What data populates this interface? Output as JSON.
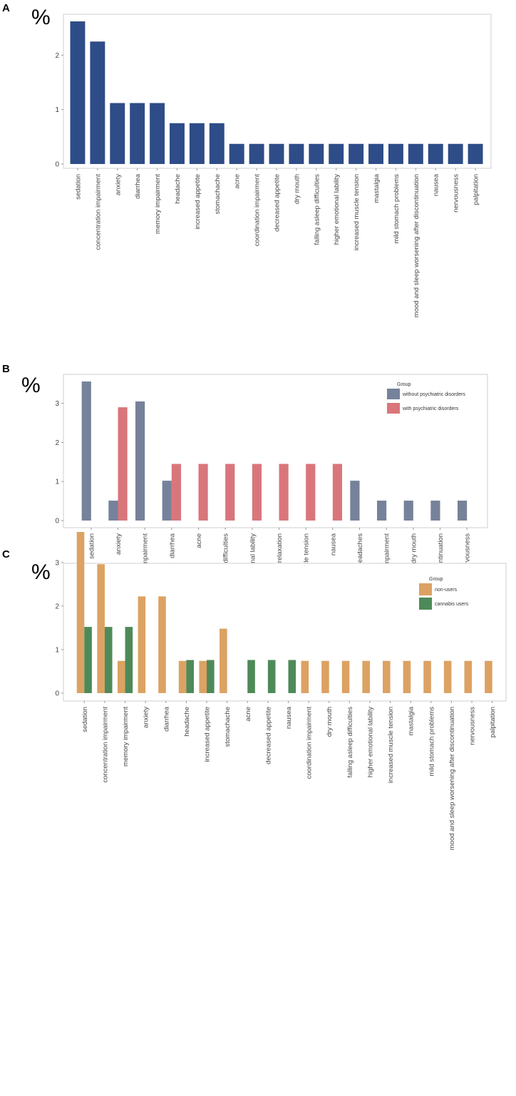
{
  "chart_data": [
    {
      "panel": "A",
      "type": "bar",
      "ylabel": "%",
      "ylim": [
        0,
        2.62
      ],
      "yticks": [
        0,
        1,
        2
      ],
      "grid": false,
      "categories": [
        "sedation",
        "concentration impairment",
        "anxiety",
        "diarrhea",
        "memory impairment",
        "headache",
        "increased appetite",
        "stomachache",
        "acne",
        "coordination impairment",
        "decreased appetite",
        "dry mouth",
        "falling asleep difficulties",
        "higher emotional lability",
        "increased muscle tension",
        "mastalgia",
        "mild stomach problems",
        "mood and sleep worsening after discontinuation",
        "nausea",
        "nervousness",
        "palpitation"
      ],
      "series": [
        {
          "values": [
            2.62,
            2.25,
            1.12,
            1.12,
            1.12,
            0.75,
            0.75,
            0.75,
            0.37,
            0.37,
            0.37,
            0.37,
            0.37,
            0.37,
            0.37,
            0.37,
            0.37,
            0.37,
            0.37,
            0.37,
            0.37
          ],
          "color": "#2e4c87"
        }
      ]
    },
    {
      "panel": "B",
      "type": "bar",
      "ylabel": "%",
      "ylim": [
        0,
        3.56
      ],
      "yticks": [
        0,
        1,
        2,
        3
      ],
      "grid": false,
      "legend": {
        "title": "Group",
        "position": "top-right"
      },
      "categories": [
        "sedation",
        "anxiety",
        "concentration impairment",
        "diarrhea",
        "acne",
        "falling asleep difficulties",
        "higher emotional lability",
        "increased muscle relaxation",
        "increased muscle tension",
        "nausea",
        "headaches",
        "coordination impairment",
        "dry mouth",
        "mood and sleep worsening after discontinuation",
        "nervousness"
      ],
      "series": [
        {
          "name": "without psychiatric disorders",
          "color": "#76829a",
          "values": [
            3.56,
            0.51,
            3.05,
            1.02,
            0,
            0,
            0,
            0,
            0,
            0,
            1.02,
            0.51,
            0.51,
            0.51,
            0.51
          ]
        },
        {
          "name": "with psychiatric disorders",
          "color": "#d9767b",
          "values": [
            0,
            2.9,
            0,
            1.45,
            1.45,
            1.45,
            1.45,
            1.45,
            1.45,
            1.45,
            0,
            0,
            0,
            0,
            0
          ]
        }
      ]
    },
    {
      "panel": "C",
      "type": "bar",
      "ylabel": "%",
      "ylim": [
        0,
        3.7
      ],
      "yticks": [
        0,
        1,
        2,
        3
      ],
      "grid": false,
      "legend": {
        "title": "Group",
        "position": "top-right"
      },
      "categories": [
        "sedation",
        "concentration impairment",
        "memory impairment",
        "anxiety",
        "diarrhea",
        "headache",
        "increased appetite",
        "stomachache",
        "acne",
        "decreased appetite",
        "nausea",
        "coordination impairment",
        "dry mouth",
        "falling asleep difficulties",
        "higher emotional lability",
        "increased muscle tension",
        "mastalgia",
        "mild stomach problems",
        "mood and sleep worsening after discontinuation",
        "nervousness",
        "palpitation"
      ],
      "series": [
        {
          "name": "non-users",
          "color": "#dca263",
          "values": [
            3.7,
            2.96,
            0.74,
            2.22,
            2.22,
            0.74,
            0.74,
            1.48,
            0,
            0,
            0,
            0.74,
            0.74,
            0.74,
            0.74,
            0.74,
            0.74,
            0.74,
            0.74,
            0.74,
            0.74
          ]
        },
        {
          "name": "cannabis users",
          "color": "#4e8a59",
          "values": [
            1.52,
            1.52,
            1.52,
            0,
            0,
            0.76,
            0.76,
            0,
            0.76,
            0.76,
            0.76,
            0,
            0,
            0,
            0,
            0,
            0,
            0,
            0,
            0,
            0
          ]
        }
      ]
    }
  ]
}
